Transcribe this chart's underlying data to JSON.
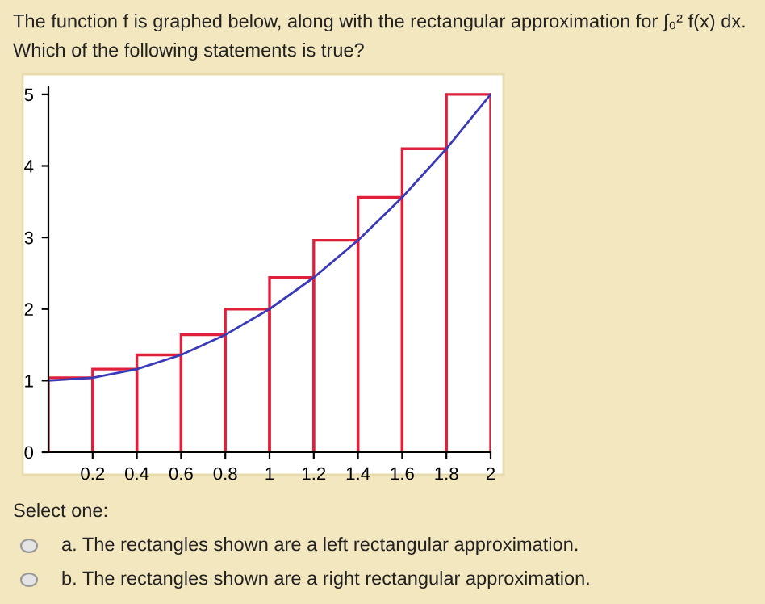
{
  "chart_data": {
    "type": "bar",
    "title": "The function f is graphed below, along with the rectangular approximation for ∫₀² f(x) dx.",
    "subtitle": "Which of the following statements is true?",
    "series": [
      {
        "color": "#e0203a",
        "x": [
          0.1,
          0.3,
          0.5,
          0.7,
          0.9,
          1.1,
          1.3,
          1.5,
          1.7,
          1.9
        ],
        "values": [
          1.04,
          1.16,
          1.36,
          1.64,
          2,
          2.44,
          2.96,
          3.56,
          4.24,
          5
        ]
      },
      {
        "type": "line",
        "color": "#3a3ab8",
        "x": [
          0,
          0.2,
          0.4,
          0.6,
          0.8,
          1,
          1.2,
          1.4,
          1.6,
          1.8,
          2
        ],
        "values": [
          1,
          1.04,
          1.16,
          1.36,
          1.64,
          2,
          2.44,
          2.96,
          3.56,
          4.24,
          5
        ]
      }
    ],
    "xlim": [
      0,
      2
    ],
    "xticks": [
      0.2,
      0.4,
      0.6,
      0.8,
      1,
      1.2,
      1.4,
      1.6,
      1.8,
      2
    ],
    "ylim": [
      0,
      5.1
    ],
    "yticks": [
      0,
      1,
      2,
      3,
      4,
      5
    ],
    "grid": false,
    "legend": false,
    "marker": "none",
    "line_style": "solid",
    "annotations": [
      "Select one:",
      "a. The rectangles shown are a left rectangular approximation.",
      "b. The rectangles shown are a right rectangular approximation."
    ]
  }
}
